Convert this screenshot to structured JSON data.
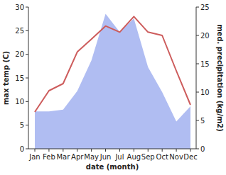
{
  "chart_data": {
    "type": "line",
    "categories": [
      "Jan",
      "Feb",
      "Mar",
      "Apr",
      "May",
      "Jun",
      "Jul",
      "Aug",
      "Sep",
      "Oct",
      "Nov",
      "Dec"
    ],
    "x_label": "date (month)",
    "y_label": "max temp (C)",
    "y2_label": "med. precipitation (kg/m2)",
    "series": [
      {
        "name": "max temp",
        "type": "line",
        "color": "#cd5c5c",
        "values": [
          7.8,
          12.3,
          13.8,
          20.5,
          23.2,
          26,
          24.7,
          28,
          24.7,
          24,
          16.5,
          9.3
        ]
      },
      {
        "name": "med. precipitation",
        "type": "area",
        "color": "#b0bdf2",
        "axis": "y2",
        "values": [
          6.6,
          6.6,
          6.9,
          10.2,
          15.6,
          23.8,
          20.6,
          23,
          14.4,
          10,
          4.8,
          7.5
        ]
      }
    ],
    "ylim": [
      0,
      30
    ],
    "yticks": [
      0,
      5,
      10,
      15,
      20,
      25,
      30
    ],
    "y2lim": [
      0,
      25
    ],
    "y2ticks": [
      0,
      5,
      10,
      15,
      20,
      25
    ],
    "grid": false
  }
}
